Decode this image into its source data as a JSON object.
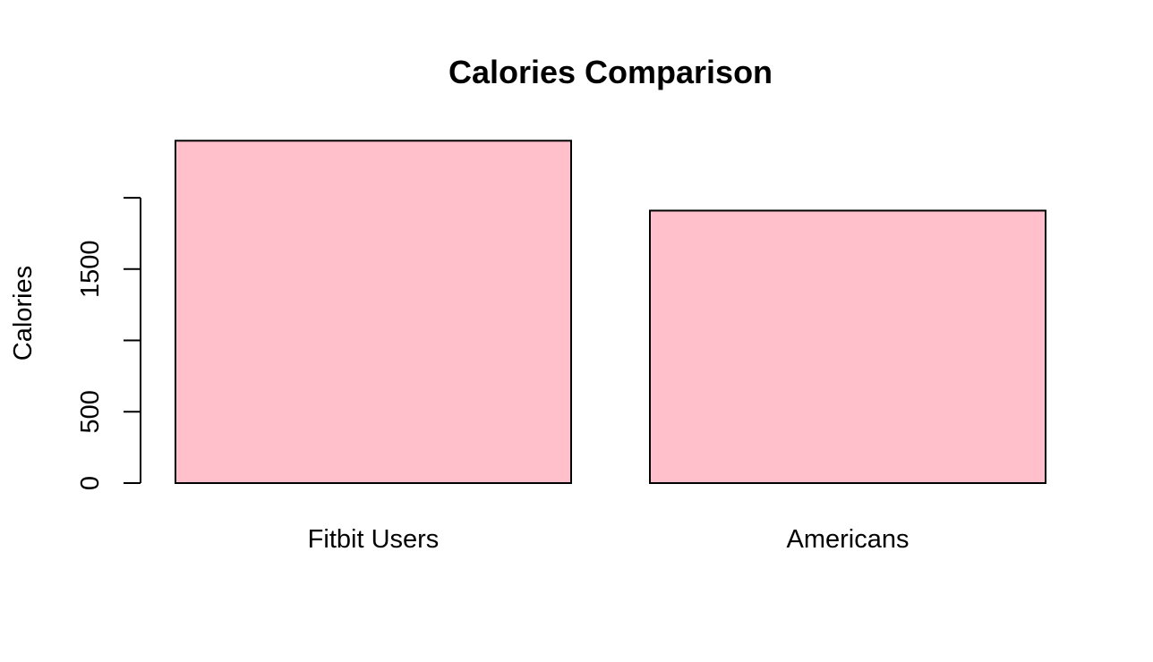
{
  "chart_data": {
    "type": "bar",
    "title": "Calories Comparison",
    "xlabel": "",
    "ylabel": "Calories",
    "categories": [
      "Fitbit Users",
      "Americans"
    ],
    "values": [
      2400,
      1910
    ],
    "ylim": [
      0,
      2400
    ],
    "yticks": [
      0,
      500,
      1000,
      1500,
      2000
    ],
    "ytick_labels": [
      "0",
      "500",
      "",
      "1500",
      ""
    ],
    "grid": false,
    "legend": "none",
    "bar_color": "#ffc0cb",
    "border_color": "#000000"
  }
}
